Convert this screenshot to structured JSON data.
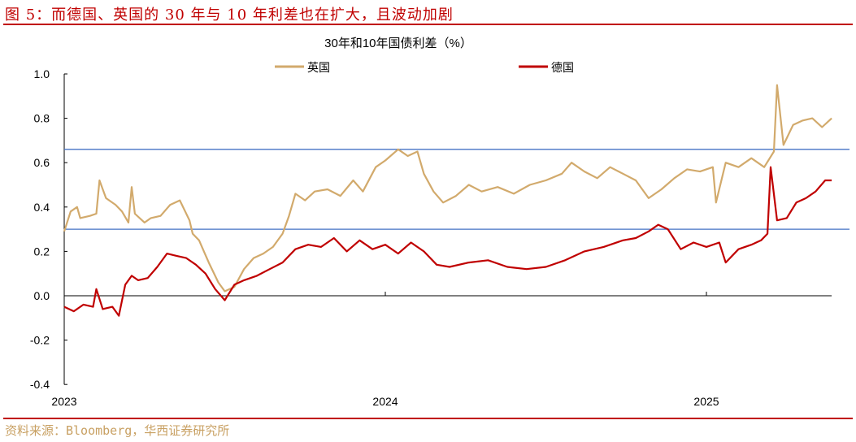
{
  "figure_title": "图 5：而德国、英国的 30 年与 10 年利差也在扩大，且波动加剧",
  "source": "资料来源：Bloomberg，华西证券研究所",
  "colors": {
    "uk": "#d2aa6c",
    "de": "#c00000",
    "ref": "#4472c4",
    "accent": "#c00000"
  },
  "chart_data": {
    "type": "line",
    "title": "30年和10年国债利差（%）",
    "xlabel": "",
    "ylabel": "",
    "xlim": [
      2023.0,
      2025.39
    ],
    "ylim": [
      -0.4,
      1.0
    ],
    "yticks": [
      1.0,
      0.8,
      0.6,
      0.4,
      0.2,
      0.0,
      -0.2,
      -0.4
    ],
    "ytick_labels": [
      "1.0",
      "0.8",
      "0.6",
      "0.4",
      "0.2",
      "0.0",
      "-0.2",
      "-0.4"
    ],
    "xticks": [
      2023,
      2024,
      2025
    ],
    "xtick_labels": [
      "2023",
      "2024",
      "2025"
    ],
    "grid": false,
    "legend": "top",
    "reference_lines": [
      0.66,
      0.3
    ],
    "series": [
      {
        "name": "英国",
        "color": "#d2aa6c",
        "x": [
          2023.0,
          2023.02,
          2023.04,
          2023.05,
          2023.08,
          2023.1,
          2023.11,
          2023.13,
          2023.16,
          2023.18,
          2023.2,
          2023.21,
          2023.22,
          2023.25,
          2023.27,
          2023.3,
          2023.33,
          2023.36,
          2023.39,
          2023.4,
          2023.42,
          2023.45,
          2023.48,
          2023.5,
          2023.53,
          2023.56,
          2023.59,
          2023.62,
          2023.65,
          2023.68,
          2023.7,
          2023.72,
          2023.75,
          2023.78,
          2023.82,
          2023.86,
          2023.9,
          2023.93,
          2023.97,
          2024.0,
          2024.04,
          2024.07,
          2024.1,
          2024.12,
          2024.15,
          2024.18,
          2024.22,
          2024.26,
          2024.3,
          2024.35,
          2024.4,
          2024.45,
          2024.5,
          2024.55,
          2024.58,
          2024.62,
          2024.66,
          2024.7,
          2024.74,
          2024.78,
          2024.82,
          2024.86,
          2024.9,
          2024.94,
          2024.98,
          2025.02,
          2025.03,
          2025.06,
          2025.1,
          2025.14,
          2025.18,
          2025.21,
          2025.22,
          2025.24,
          2025.27,
          2025.3,
          2025.33,
          2025.36,
          2025.39
        ],
        "values": [
          0.29,
          0.38,
          0.4,
          0.35,
          0.36,
          0.37,
          0.52,
          0.44,
          0.41,
          0.38,
          0.33,
          0.49,
          0.37,
          0.33,
          0.35,
          0.36,
          0.41,
          0.43,
          0.34,
          0.28,
          0.25,
          0.15,
          0.06,
          0.02,
          0.04,
          0.12,
          0.17,
          0.19,
          0.22,
          0.28,
          0.36,
          0.46,
          0.43,
          0.47,
          0.48,
          0.45,
          0.52,
          0.47,
          0.58,
          0.61,
          0.66,
          0.63,
          0.65,
          0.55,
          0.47,
          0.42,
          0.45,
          0.5,
          0.47,
          0.49,
          0.46,
          0.5,
          0.52,
          0.55,
          0.6,
          0.56,
          0.53,
          0.58,
          0.55,
          0.52,
          0.44,
          0.48,
          0.53,
          0.57,
          0.56,
          0.58,
          0.42,
          0.6,
          0.58,
          0.62,
          0.58,
          0.65,
          0.95,
          0.68,
          0.77,
          0.79,
          0.8,
          0.76,
          0.8
        ]
      },
      {
        "name": "德国",
        "color": "#c00000",
        "x": [
          2023.0,
          2023.03,
          2023.06,
          2023.09,
          2023.1,
          2023.12,
          2023.15,
          2023.17,
          2023.19,
          2023.21,
          2023.23,
          2023.26,
          2023.29,
          2023.32,
          2023.35,
          2023.38,
          2023.41,
          2023.44,
          2023.47,
          2023.5,
          2023.53,
          2023.56,
          2023.6,
          2023.64,
          2023.68,
          2023.72,
          2023.76,
          2023.8,
          2023.84,
          2023.88,
          2023.92,
          2023.96,
          2024.0,
          2024.04,
          2024.08,
          2024.12,
          2024.16,
          2024.2,
          2024.26,
          2024.32,
          2024.38,
          2024.44,
          2024.5,
          2024.56,
          2024.62,
          2024.68,
          2024.74,
          2024.78,
          2024.82,
          2024.85,
          2024.88,
          2024.92,
          2024.96,
          2025.0,
          2025.04,
          2025.06,
          2025.1,
          2025.14,
          2025.17,
          2025.19,
          2025.2,
          2025.22,
          2025.25,
          2025.28,
          2025.31,
          2025.34,
          2025.37,
          2025.39
        ],
        "values": [
          -0.05,
          -0.07,
          -0.04,
          -0.05,
          0.03,
          -0.06,
          -0.05,
          -0.09,
          0.05,
          0.09,
          0.07,
          0.08,
          0.13,
          0.19,
          0.18,
          0.17,
          0.14,
          0.1,
          0.03,
          -0.02,
          0.05,
          0.07,
          0.09,
          0.12,
          0.15,
          0.21,
          0.23,
          0.22,
          0.26,
          0.2,
          0.25,
          0.21,
          0.23,
          0.19,
          0.24,
          0.2,
          0.14,
          0.13,
          0.15,
          0.16,
          0.13,
          0.12,
          0.13,
          0.16,
          0.2,
          0.22,
          0.25,
          0.26,
          0.29,
          0.32,
          0.3,
          0.21,
          0.24,
          0.22,
          0.24,
          0.15,
          0.21,
          0.23,
          0.25,
          0.28,
          0.58,
          0.34,
          0.35,
          0.42,
          0.44,
          0.47,
          0.52,
          0.52
        ]
      }
    ]
  }
}
